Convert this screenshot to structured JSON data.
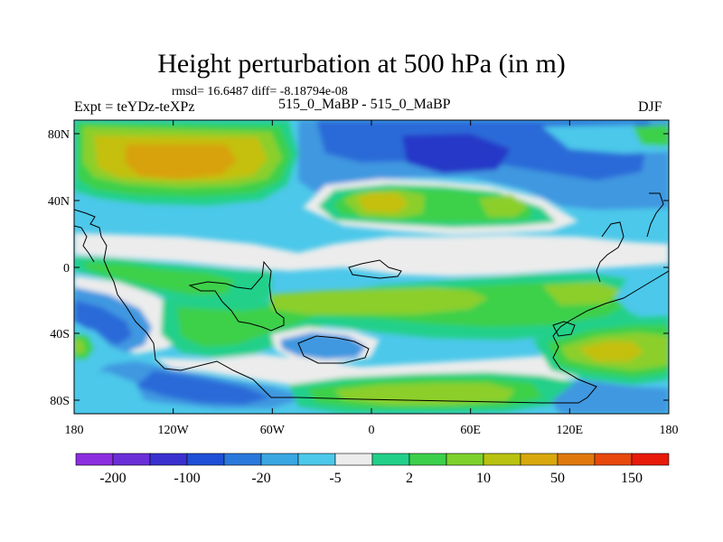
{
  "title": "Height perturbation at 500 hPa (in m)",
  "stats": "rmsd= 16.6487 diff= -8.18794e-08",
  "left_label": "Expt = teYDz-teXPz",
  "center_label": "515_0_MaBP - 515_0_MaBP",
  "right_label": "DJF",
  "lat_ticks": [
    "80N",
    "40N",
    "0",
    "40S",
    "80S"
  ],
  "lon_ticks": [
    "180",
    "120W",
    "60W",
    "0",
    "60E",
    "120E",
    "180"
  ],
  "colorbar": {
    "labels": [
      "-200",
      "-100",
      "-20",
      "-5",
      "2",
      "10",
      "50",
      "150"
    ],
    "colors": [
      "#8c2ee0",
      "#6a2fd8",
      "#3a30d0",
      "#1f4fd6",
      "#2a78dc",
      "#3aa6e2",
      "#4cc8ea",
      "#ececec",
      "#22d08a",
      "#3cd04a",
      "#7ed12a",
      "#b8c20f",
      "#d8a80c",
      "#e0780e",
      "#e8480c",
      "#e81a0a"
    ]
  },
  "map_palette": {
    "darkblue": "#2838c8",
    "blue": "#2b6ad8",
    "midblue": "#3f98e0",
    "cyan": "#4cc8ea",
    "white": "#ececec",
    "teal": "#22d08a",
    "green": "#3cd04a",
    "yellowgreen": "#8ccf2a",
    "yellow": "#c4c010",
    "orange": "#d8a20c"
  }
}
